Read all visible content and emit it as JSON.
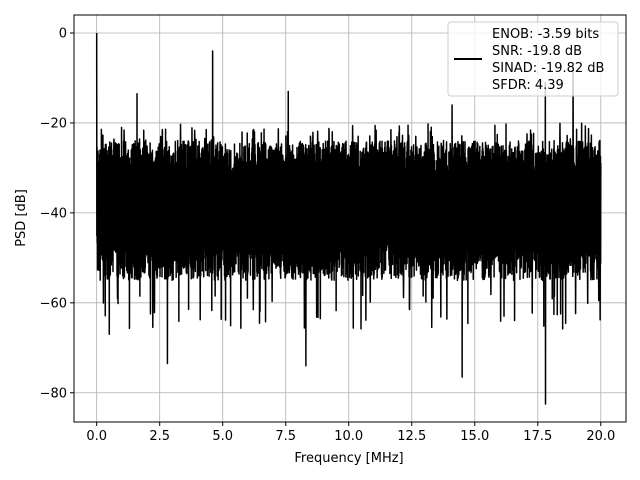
{
  "chart_data": {
    "type": "line",
    "title": "",
    "xlabel": "Frequency [MHz]",
    "ylabel": "PSD [dB]",
    "xlim": [
      -0.9,
      21.0
    ],
    "ylim": [
      -86.5,
      4.0
    ],
    "grid": true,
    "legend_position": "top-right",
    "x_ticks": [
      "0.0",
      "2.5",
      "5.0",
      "7.5",
      "10.0",
      "12.5",
      "15.0",
      "17.5",
      "20.0"
    ],
    "y_ticks": [
      "0",
      "−20",
      "−40",
      "−60",
      "−80"
    ],
    "series": [
      {
        "name": "ENOB: -3.59 bits\nSNR: -19.8 dB\nSINAD: -19.82 dB\nSFDR: 4.39",
        "color": "#000000",
        "x_range": [
          0.0,
          20.0
        ],
        "noise_band_db": [
          -55,
          -24
        ],
        "peaks": [
          {
            "x": 0.0,
            "y": 0.0
          },
          {
            "x": 1.6,
            "y": -13.5
          },
          {
            "x": 4.6,
            "y": -4.0
          },
          {
            "x": 7.6,
            "y": -13.0
          },
          {
            "x": 14.1,
            "y": -16.0
          },
          {
            "x": 17.8,
            "y": -11.0
          },
          {
            "x": 18.9,
            "y": -7.5
          }
        ],
        "troughs": [
          {
            "x": 0.5,
            "y": -67.0
          },
          {
            "x": 2.8,
            "y": -73.5
          },
          {
            "x": 8.3,
            "y": -74.0
          },
          {
            "x": 14.5,
            "y": -76.5
          },
          {
            "x": 17.8,
            "y": -82.5
          }
        ]
      }
    ]
  },
  "legend": {
    "lines": [
      "ENOB: -3.59 bits",
      "SNR: -19.8 dB",
      "SINAD: -19.82 dB",
      "SFDR: 4.39"
    ]
  }
}
